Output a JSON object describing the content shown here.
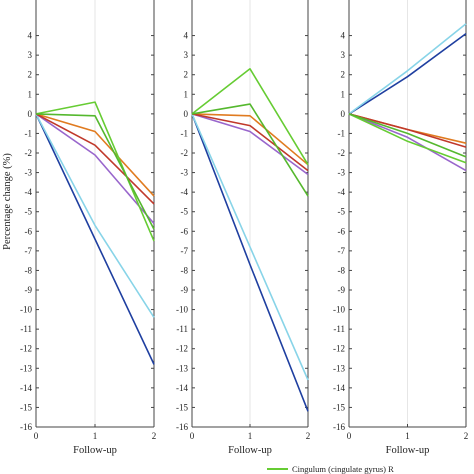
{
  "chart_data": {
    "type": "line",
    "ylabel": "Percentage change (%)",
    "xlabel": "Follow-up",
    "ylim": [
      -16,
      5
    ],
    "xlim": [
      0,
      2
    ],
    "xticks": [
      "0",
      "1",
      "2"
    ],
    "yticks": [
      4,
      3,
      2,
      1,
      0,
      -1,
      -2,
      -3,
      -4,
      -5,
      -6,
      -7,
      -8,
      -9,
      -10,
      -11,
      -12,
      -13,
      -14,
      -15,
      -16
    ],
    "grid": false,
    "legend_position": "bottom",
    "legend_entries": [
      {
        "name": "Cingulum (cingulate gyrus) R",
        "color": "#66cc33"
      }
    ],
    "panels": [
      {
        "series": [
          {
            "color": "#1f3fa0",
            "values": [
              0,
              -6.4,
              -12.8
            ]
          },
          {
            "color": "#88d4e8",
            "values": [
              0,
              -5.7,
              -10.4
            ]
          },
          {
            "color": "#9966cc",
            "values": [
              0,
              -2.1,
              -5.6
            ]
          },
          {
            "color": "#e07b20",
            "values": [
              0,
              -0.9,
              -4.2
            ]
          },
          {
            "color": "#c0392b",
            "values": [
              0,
              -1.6,
              -4.6
            ]
          },
          {
            "color": "#66cc33",
            "values": [
              0,
              0.6,
              -6.5
            ]
          },
          {
            "color": "#55b82e",
            "values": [
              0,
              -0.1,
              -5.9
            ]
          }
        ]
      },
      {
        "series": [
          {
            "color": "#1f3fa0",
            "values": [
              0,
              -7.7,
              -15.2
            ]
          },
          {
            "color": "#88d4e8",
            "values": [
              0,
              -6.8,
              -13.6
            ]
          },
          {
            "color": "#9966cc",
            "values": [
              0,
              -0.9,
              -3.1
            ]
          },
          {
            "color": "#e07b20",
            "values": [
              0,
              -0.1,
              -2.6
            ]
          },
          {
            "color": "#c0392b",
            "values": [
              0,
              -0.6,
              -2.9
            ]
          },
          {
            "color": "#66cc33",
            "values": [
              0,
              2.3,
              -2.6
            ]
          },
          {
            "color": "#55b82e",
            "values": [
              0,
              0.5,
              -4.2
            ]
          }
        ]
      },
      {
        "series": [
          {
            "color": "#1f3fa0",
            "values": [
              0,
              1.9,
              4.1
            ]
          },
          {
            "color": "#88d4e8",
            "values": [
              0,
              2.2,
              4.6
            ]
          },
          {
            "color": "#9966cc",
            "values": [
              0,
              -1.2,
              -2.9
            ]
          },
          {
            "color": "#e07b20",
            "values": [
              0,
              -0.8,
              -1.5
            ]
          },
          {
            "color": "#c0392b",
            "values": [
              0,
              -0.8,
              -1.7
            ]
          },
          {
            "color": "#66cc33",
            "values": [
              0,
              -1.4,
              -2.5
            ]
          },
          {
            "color": "#55b82e",
            "values": [
              0,
              -1.0,
              -2.2
            ]
          }
        ]
      }
    ]
  }
}
